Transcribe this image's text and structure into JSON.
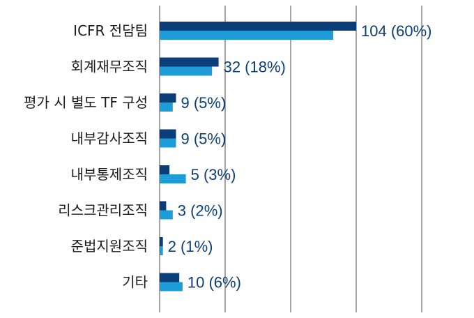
{
  "chart_data": {
    "type": "bar",
    "orientation": "horizontal",
    "title": "",
    "xlabel": "",
    "ylabel": "",
    "xlim": [
      0,
      100
    ],
    "grid": true,
    "legend": "none",
    "categories": [
      "ICFR 전담팀",
      "회계재무조직",
      "평가 시 별도 TF 구성",
      "내부감사조직",
      "내부통제조직",
      "리스크관리조직",
      "준법지원조직",
      "기타"
    ],
    "data_labels": [
      "104 (60%)",
      "32 (18%)",
      "9 (5%)",
      "9 (5%)",
      "5 (3%)",
      "3 (2%)",
      "2 (1%)",
      "10 (6%)"
    ],
    "series": [
      {
        "name": "series-1",
        "color": "#0b3e78",
        "values": [
          60,
          18,
          5,
          5,
          3,
          2,
          1,
          6
        ]
      },
      {
        "name": "series-2",
        "color": "#1e9cd8",
        "values": [
          53,
          16,
          4,
          5,
          8,
          4,
          1,
          7
        ]
      }
    ]
  }
}
